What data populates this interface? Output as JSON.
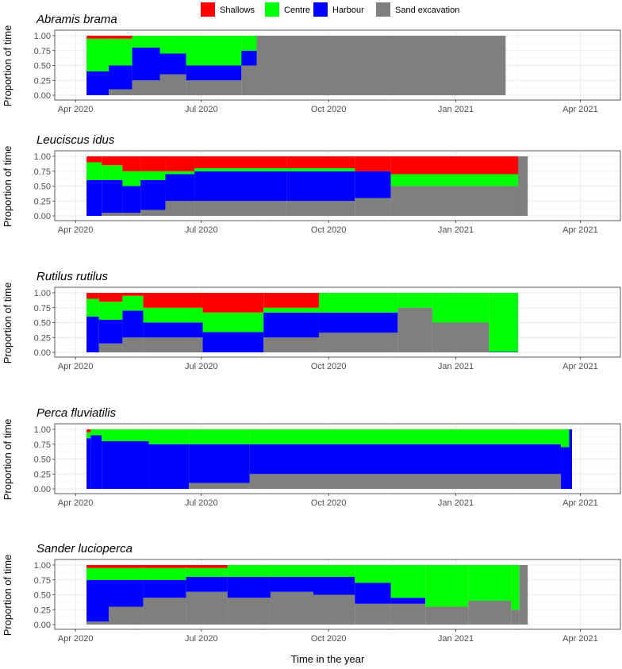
{
  "figure": {
    "xlabel": "Time in the year",
    "ylabel": "Proportion of time"
  },
  "colors": {
    "Shallows": "#ff0000",
    "Centre": "#00ff00",
    "Harbour": "#0000ff",
    "Sand excavation": "#7f7f7f"
  },
  "chart_data": {
    "type": "area",
    "stacking": "fill",
    "legend": {
      "position": "top",
      "entries": [
        "Shallows",
        "Centre",
        "Harbour",
        "Sand excavation"
      ]
    },
    "x_ticks": [
      {
        "date": "2020-04-01",
        "label": "Apr 2020"
      },
      {
        "date": "2020-07-01",
        "label": "Jul 2020"
      },
      {
        "date": "2020-10-01",
        "label": "Oct 2020"
      },
      {
        "date": "2021-01-01",
        "label": "Jan 2021"
      },
      {
        "date": "2021-04-01",
        "label": "Apr 2021"
      }
    ],
    "xlim": [
      "2020-03-17",
      "2021-04-30"
    ],
    "ylim": [
      0,
      1
    ],
    "y_ticks": [
      0,
      0.25,
      0.5,
      0.75,
      1
    ],
    "y_tick_labels": [
      "0.00",
      "0.25",
      "0.50",
      "0.75",
      "1.00"
    ],
    "grid": true,
    "panels": [
      {
        "title": "Abramis brama",
        "segments": [
          {
            "start": "2020-04-09",
            "values": {
              "Shallows": 0.05,
              "Centre": 0.55,
              "Harbour": 0.4,
              "Sand excavation": 0.0
            }
          },
          {
            "start": "2020-04-25",
            "values": {
              "Shallows": 0.05,
              "Centre": 0.45,
              "Harbour": 0.4,
              "Sand excavation": 0.1
            }
          },
          {
            "start": "2020-05-12",
            "values": {
              "Shallows": 0.0,
              "Centre": 0.2,
              "Harbour": 0.55,
              "Sand excavation": 0.25
            }
          },
          {
            "start": "2020-06-01",
            "values": {
              "Shallows": 0.0,
              "Centre": 0.3,
              "Harbour": 0.35,
              "Sand excavation": 0.35
            }
          },
          {
            "start": "2020-06-20",
            "values": {
              "Shallows": 0.0,
              "Centre": 0.5,
              "Harbour": 0.25,
              "Sand excavation": 0.25
            }
          },
          {
            "start": "2020-07-10",
            "values": {
              "Shallows": 0.0,
              "Centre": 0.5,
              "Harbour": 0.25,
              "Sand excavation": 0.25
            }
          },
          {
            "start": "2020-07-30",
            "values": {
              "Shallows": 0.0,
              "Centre": 0.25,
              "Harbour": 0.25,
              "Sand excavation": 0.5
            }
          },
          {
            "start": "2020-08-10",
            "values": {
              "Shallows": 0.0,
              "Centre": 0.0,
              "Harbour": 0.0,
              "Sand excavation": 1.0
            }
          },
          {
            "start": "2021-02-06",
            "values": {
              "Shallows": 0,
              "Centre": 0,
              "Harbour": 0,
              "Sand excavation": 0
            }
          }
        ]
      },
      {
        "title": "Leuciscus idus",
        "segments": [
          {
            "start": "2020-04-09",
            "values": {
              "Shallows": 0.1,
              "Centre": 0.3,
              "Harbour": 0.6,
              "Sand excavation": 0.0
            }
          },
          {
            "start": "2020-04-20",
            "values": {
              "Shallows": 0.15,
              "Centre": 0.25,
              "Harbour": 0.55,
              "Sand excavation": 0.05
            }
          },
          {
            "start": "2020-05-05",
            "values": {
              "Shallows": 0.25,
              "Centre": 0.25,
              "Harbour": 0.45,
              "Sand excavation": 0.05
            }
          },
          {
            "start": "2020-05-18",
            "values": {
              "Shallows": 0.25,
              "Centre": 0.15,
              "Harbour": 0.5,
              "Sand excavation": 0.1
            }
          },
          {
            "start": "2020-06-05",
            "values": {
              "Shallows": 0.25,
              "Centre": 0.05,
              "Harbour": 0.45,
              "Sand excavation": 0.25
            }
          },
          {
            "start": "2020-06-26",
            "values": {
              "Shallows": 0.2,
              "Centre": 0.05,
              "Harbour": 0.5,
              "Sand excavation": 0.25
            }
          },
          {
            "start": "2020-09-01",
            "values": {
              "Shallows": 0.2,
              "Centre": 0.05,
              "Harbour": 0.5,
              "Sand excavation": 0.25
            }
          },
          {
            "start": "2020-10-20",
            "values": {
              "Shallows": 0.25,
              "Centre": 0.0,
              "Harbour": 0.45,
              "Sand excavation": 0.3
            }
          },
          {
            "start": "2020-11-15",
            "values": {
              "Shallows": 0.3,
              "Centre": 0.2,
              "Harbour": 0.0,
              "Sand excavation": 0.5
            }
          },
          {
            "start": "2021-02-15",
            "values": {
              "Shallows": 0.0,
              "Centre": 0.0,
              "Harbour": 0.0,
              "Sand excavation": 1.0
            }
          },
          {
            "start": "2021-02-22",
            "values": {
              "Shallows": 0,
              "Centre": 0,
              "Harbour": 0,
              "Sand excavation": 0
            }
          }
        ]
      },
      {
        "title": "Rutilus rutilus",
        "segments": [
          {
            "start": "2020-04-09",
            "values": {
              "Shallows": 0.1,
              "Centre": 0.3,
              "Harbour": 0.6,
              "Sand excavation": 0.0
            }
          },
          {
            "start": "2020-04-18",
            "values": {
              "Shallows": 0.15,
              "Centre": 0.3,
              "Harbour": 0.4,
              "Sand excavation": 0.15
            }
          },
          {
            "start": "2020-05-05",
            "values": {
              "Shallows": 0.05,
              "Centre": 0.25,
              "Harbour": 0.45,
              "Sand excavation": 0.25
            }
          },
          {
            "start": "2020-05-20",
            "values": {
              "Shallows": 0.25,
              "Centre": 0.25,
              "Harbour": 0.25,
              "Sand excavation": 0.25
            }
          },
          {
            "start": "2020-07-02",
            "values": {
              "Shallows": 0.33,
              "Centre": 0.33,
              "Harbour": 0.34,
              "Sand excavation": 0.0
            }
          },
          {
            "start": "2020-08-15",
            "values": {
              "Shallows": 0.25,
              "Centre": 0.08,
              "Harbour": 0.42,
              "Sand excavation": 0.25
            }
          },
          {
            "start": "2020-09-24",
            "values": {
              "Shallows": 0.0,
              "Centre": 0.33,
              "Harbour": 0.34,
              "Sand excavation": 0.33
            }
          },
          {
            "start": "2020-11-20",
            "values": {
              "Shallows": 0.0,
              "Centre": 0.25,
              "Harbour": 0.0,
              "Sand excavation": 0.75
            }
          },
          {
            "start": "2020-12-15",
            "values": {
              "Shallows": 0.0,
              "Centre": 0.5,
              "Harbour": 0.0,
              "Sand excavation": 0.5
            }
          },
          {
            "start": "2021-01-25",
            "values": {
              "Shallows": 0.0,
              "Centre": 0.99,
              "Harbour": 0.01,
              "Sand excavation": 0.0
            }
          },
          {
            "start": "2021-02-15",
            "values": {
              "Shallows": 0,
              "Centre": 0,
              "Harbour": 0,
              "Sand excavation": 0
            }
          }
        ]
      },
      {
        "title": "Perca fluviatilis",
        "segments": [
          {
            "start": "2020-04-09",
            "values": {
              "Shallows": 0.05,
              "Centre": 0.1,
              "Harbour": 0.85,
              "Sand excavation": 0.0
            }
          },
          {
            "start": "2020-04-12",
            "values": {
              "Shallows": 0.0,
              "Centre": 0.1,
              "Harbour": 0.9,
              "Sand excavation": 0.0
            }
          },
          {
            "start": "2020-04-20",
            "values": {
              "Shallows": 0.0,
              "Centre": 0.2,
              "Harbour": 0.8,
              "Sand excavation": 0.0
            }
          },
          {
            "start": "2020-05-24",
            "values": {
              "Shallows": 0.0,
              "Centre": 0.25,
              "Harbour": 0.75,
              "Sand excavation": 0.0
            }
          },
          {
            "start": "2020-06-22",
            "values": {
              "Shallows": 0.0,
              "Centre": 0.25,
              "Harbour": 0.65,
              "Sand excavation": 0.1
            }
          },
          {
            "start": "2020-08-05",
            "values": {
              "Shallows": 0.0,
              "Centre": 0.25,
              "Harbour": 0.5,
              "Sand excavation": 0.25
            }
          },
          {
            "start": "2021-03-18",
            "values": {
              "Shallows": 0.0,
              "Centre": 0.3,
              "Harbour": 0.7,
              "Sand excavation": 0.0
            }
          },
          {
            "start": "2021-03-24",
            "values": {
              "Shallows": 0.0,
              "Centre": 0.0,
              "Harbour": 1.0,
              "Sand excavation": 0.0
            }
          },
          {
            "start": "2021-03-26",
            "values": {
              "Shallows": 0,
              "Centre": 0,
              "Harbour": 0,
              "Sand excavation": 0
            }
          }
        ]
      },
      {
        "title": "Sander lucioperca",
        "segments": [
          {
            "start": "2020-04-09",
            "values": {
              "Shallows": 0.05,
              "Centre": 0.2,
              "Harbour": 0.7,
              "Sand excavation": 0.05
            }
          },
          {
            "start": "2020-04-25",
            "values": {
              "Shallows": 0.05,
              "Centre": 0.2,
              "Harbour": 0.45,
              "Sand excavation": 0.3
            }
          },
          {
            "start": "2020-05-20",
            "values": {
              "Shallows": 0.05,
              "Centre": 0.2,
              "Harbour": 0.3,
              "Sand excavation": 0.45
            }
          },
          {
            "start": "2020-06-20",
            "values": {
              "Shallows": 0.05,
              "Centre": 0.15,
              "Harbour": 0.25,
              "Sand excavation": 0.55
            }
          },
          {
            "start": "2020-07-20",
            "values": {
              "Shallows": 0.0,
              "Centre": 0.2,
              "Harbour": 0.35,
              "Sand excavation": 0.45
            }
          },
          {
            "start": "2020-08-20",
            "values": {
              "Shallows": 0.0,
              "Centre": 0.2,
              "Harbour": 0.25,
              "Sand excavation": 0.55
            }
          },
          {
            "start": "2020-09-20",
            "values": {
              "Shallows": 0.0,
              "Centre": 0.2,
              "Harbour": 0.3,
              "Sand excavation": 0.5
            }
          },
          {
            "start": "2020-10-20",
            "values": {
              "Shallows": 0.0,
              "Centre": 0.3,
              "Harbour": 0.35,
              "Sand excavation": 0.35
            }
          },
          {
            "start": "2020-11-15",
            "values": {
              "Shallows": 0.0,
              "Centre": 0.55,
              "Harbour": 0.1,
              "Sand excavation": 0.35
            }
          },
          {
            "start": "2020-12-10",
            "values": {
              "Shallows": 0.0,
              "Centre": 0.7,
              "Harbour": 0.0,
              "Sand excavation": 0.3
            }
          },
          {
            "start": "2021-01-10",
            "values": {
              "Shallows": 0.0,
              "Centre": 0.6,
              "Harbour": 0.0,
              "Sand excavation": 0.4
            }
          },
          {
            "start": "2021-02-10",
            "values": {
              "Shallows": 0.0,
              "Centre": 0.75,
              "Harbour": 0.0,
              "Sand excavation": 0.25
            }
          },
          {
            "start": "2021-02-16",
            "values": {
              "Shallows": 0.0,
              "Centre": 0.0,
              "Harbour": 0.0,
              "Sand excavation": 1.0
            }
          },
          {
            "start": "2021-02-22",
            "values": {
              "Shallows": 0,
              "Centre": 0,
              "Harbour": 0,
              "Sand excavation": 0
            }
          }
        ]
      }
    ]
  }
}
